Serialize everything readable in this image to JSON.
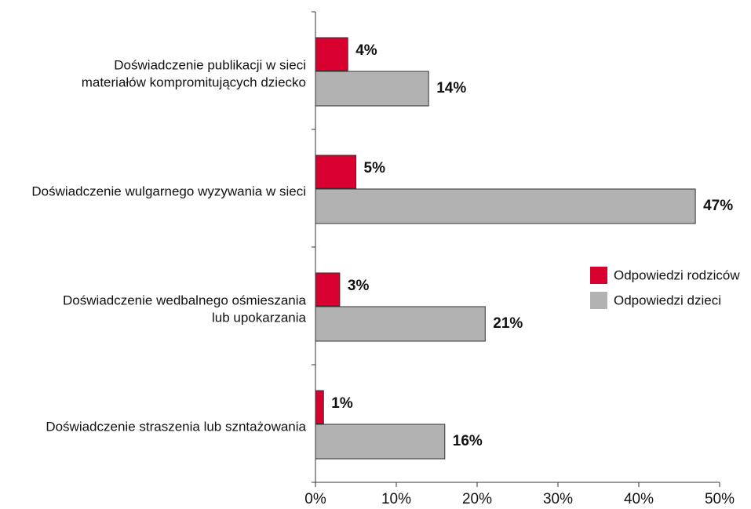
{
  "chart_data": {
    "type": "hbar",
    "categories": [
      [
        "Doświadczenie publikacji w sieci",
        "materiałów kompromitujących dziecko"
      ],
      [
        "Doświadczenie wulgarnego wyzywania w sieci"
      ],
      [
        "Doświadczenie wedbalnego ośmieszania",
        "lub upokarzania"
      ],
      [
        "Doświadczenie straszenia lub szntażowania"
      ]
    ],
    "series": [
      {
        "name": "Odpowiedzi rodziców",
        "color": "#d7002e",
        "values": [
          4,
          5,
          3,
          1
        ],
        "value_labels": [
          "4%",
          "5%",
          "3%",
          "1%"
        ]
      },
      {
        "name": "Odpowiedzi dzieci",
        "color": "#b2b2b2",
        "values": [
          14,
          47,
          21,
          16
        ],
        "value_labels": [
          "14%",
          "47%",
          "21%",
          "16%"
        ]
      }
    ],
    "xlim": [
      0,
      50
    ],
    "xticks": [
      {
        "value": 0,
        "label": "0%"
      },
      {
        "value": 10,
        "label": "10%"
      },
      {
        "value": 20,
        "label": "20%"
      },
      {
        "value": 30,
        "label": "30%"
      },
      {
        "value": 40,
        "label": "40%"
      },
      {
        "value": 50,
        "label": "50%"
      }
    ],
    "legend": "right"
  }
}
